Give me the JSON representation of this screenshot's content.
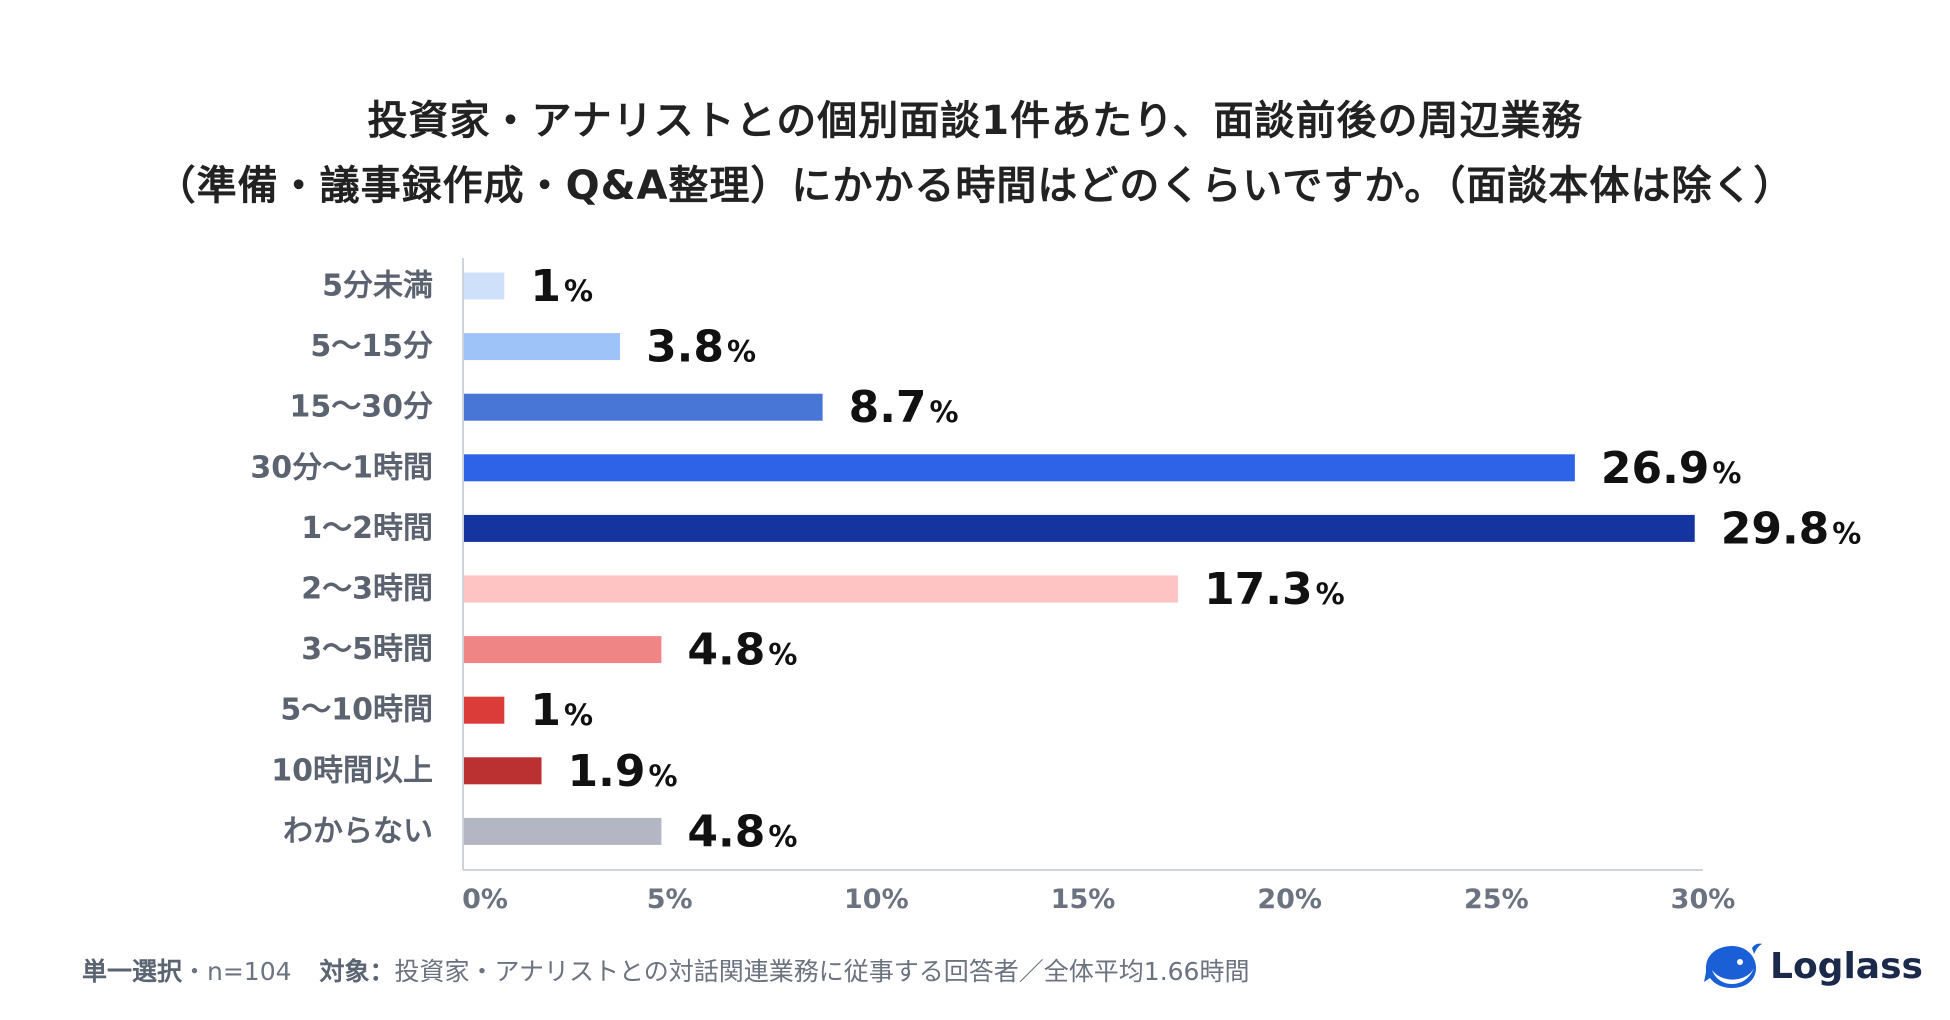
{
  "title": {
    "line1": "投資家・アナリストとの個別面談1件あたり、面談前後の周辺業務",
    "line2": "（準備・議事録作成・Q&A整理）にかかる時間はどのくらいですか。（面談本体は除く）"
  },
  "chart_data": {
    "type": "bar",
    "orientation": "horizontal",
    "categories": [
      "5分未満",
      "5〜15分",
      "15〜30分",
      "30分〜1時間",
      "1〜2時間",
      "2〜3時間",
      "3〜5時間",
      "5〜10時間",
      "10時間以上",
      "わからない"
    ],
    "values": [
      1,
      3.8,
      8.7,
      26.9,
      29.8,
      17.3,
      4.8,
      1,
      1.9,
      4.8
    ],
    "value_labels": [
      "1",
      "3.8",
      "8.7",
      "26.9",
      "29.8",
      "17.3",
      "4.8",
      "1",
      "1.9",
      "4.8"
    ],
    "value_suffix": "%",
    "colors": [
      "#cfe0fb",
      "#9ec3f8",
      "#4776d6",
      "#2e63e8",
      "#1435a0",
      "#fdc4c3",
      "#f08585",
      "#db3c3a",
      "#bb3131",
      "#b5b6c4"
    ],
    "xlim": [
      0,
      30
    ],
    "xticks": [
      0,
      5,
      10,
      15,
      20,
      25,
      30
    ],
    "xtick_labels": [
      "0%",
      "5%",
      "10%",
      "15%",
      "20%",
      "25%",
      "30%"
    ],
    "grid": false
  },
  "footer": {
    "selection": "単一選択",
    "sample": "・n=104",
    "target_label": "対象：",
    "target_text": "投資家・アナリストとの対話関連業務に従事する回答者／全体平均1.66時間"
  },
  "logo": {
    "text": "Loglass",
    "icon": "whale-icon",
    "color": "#1b5fd6"
  }
}
